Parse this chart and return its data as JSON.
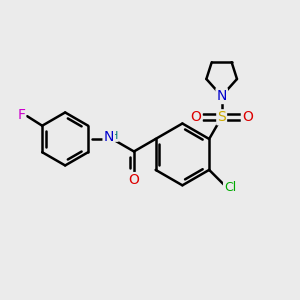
{
  "background_color": "#ebebeb",
  "atom_colors": {
    "C": "#000000",
    "N": "#0000cc",
    "O": "#dd0000",
    "S": "#ccaa00",
    "F": "#cc00cc",
    "Cl": "#00aa00",
    "H": "#007777"
  },
  "bond_color": "#000000",
  "bond_width": 1.8,
  "fig_bg": "#ebebeb"
}
